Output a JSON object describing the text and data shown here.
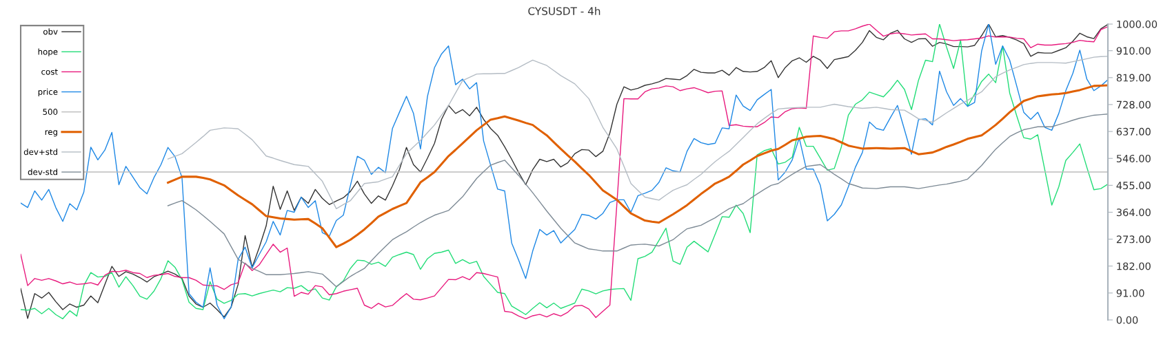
{
  "chart_data": {
    "type": "line",
    "title": "CYSUSDT - 4h",
    "categories": [
      null,
      null,
      null,
      null,
      null,
      null,
      null,
      null,
      null,
      null,
      null,
      null,
      null,
      null,
      null,
      null,
      null,
      null,
      null,
      null,
      null,
      null,
      null,
      null,
      null,
      null,
      null,
      null,
      null,
      null,
      null,
      null,
      null,
      null,
      null,
      null,
      null,
      null,
      null,
      null,
      null,
      null,
      null,
      null,
      null,
      null,
      null,
      null,
      null,
      null,
      null,
      null,
      null,
      null,
      null,
      null,
      null,
      null,
      null,
      null,
      null,
      null,
      null,
      null,
      null,
      null,
      null,
      null,
      null,
      null,
      null,
      null,
      null,
      null,
      null,
      null,
      null,
      null,
      null,
      null,
      null,
      null,
      null,
      null,
      null,
      null,
      null,
      null,
      null,
      null,
      null,
      null,
      null,
      null,
      null,
      null,
      null,
      null,
      null,
      null,
      null,
      null,
      null,
      null,
      null,
      null,
      null,
      null,
      null,
      null,
      null,
      null,
      null,
      null,
      null,
      null,
      null,
      null,
      null,
      null,
      null,
      null,
      null,
      null,
      null,
      null,
      null,
      null,
      null,
      null,
      null,
      null,
      null,
      null,
      null,
      null,
      null,
      null,
      null,
      null,
      null,
      null,
      null,
      null,
      null,
      null,
      null,
      null,
      null,
      null,
      null,
      null,
      null,
      null,
      null,
      null
    ],
    "ylim": [
      0,
      1000
    ],
    "yticks": [
      {
        "value": 0,
        "label": "0.00"
      },
      {
        "value": 91,
        "label": "91.00"
      },
      {
        "value": 182,
        "label": "182.00"
      },
      {
        "value": 273,
        "label": "273.00"
      },
      {
        "value": 364,
        "label": "364.00"
      },
      {
        "value": 455,
        "label": "455.00"
      },
      {
        "value": 546,
        "label": "546.00"
      },
      {
        "value": 637,
        "label": "637.00"
      },
      {
        "value": 728,
        "label": "728.00"
      },
      {
        "value": 819,
        "label": "819.00"
      },
      {
        "value": 910,
        "label": "910.00"
      },
      {
        "value": 1000,
        "label": "1000.00"
      }
    ],
    "tick_labels": "y",
    "legend": "top left",
    "series": [
      {
        "name": "obv",
        "color": "#333333",
        "values": [
          106,
          5,
          89,
          74,
          93,
          62,
          35,
          54,
          43,
          50,
          81,
          58,
          120,
          181,
          147,
          163,
          155,
          143,
          128,
          146,
          155,
          165,
          155,
          140,
          81,
          54,
          43,
          57,
          35,
          10,
          43,
          120,
          285,
          178,
          244,
          318,
          452,
          374,
          436,
          370,
          415,
          394,
          441,
          411,
          390,
          402,
          413,
          434,
          469,
          426,
          394,
          419,
          405,
          453,
          508,
          583,
          525,
          500,
          547,
          597,
          678,
          725,
          698,
          711,
          690,
          719,
          678,
          647,
          624,
          585,
          543,
          498,
          457,
          508,
          543,
          535,
          543,
          517,
          531,
          562,
          576,
          574,
          552,
          570,
          632,
          729,
          788,
          777,
          783,
          793,
          798,
          805,
          816,
          814,
          812,
          826,
          847,
          837,
          835,
          835,
          844,
          827,
          853,
          840,
          838,
          840,
          853,
          876,
          819,
          853,
          876,
          886,
          871,
          891,
          878,
          850,
          880,
          885,
          890,
          911,
          938,
          978,
          955,
          947,
          969,
          979,
          950,
          938,
          950,
          951,
          925,
          938,
          933,
          924,
          924,
          923,
          928,
          961,
          1000,
          957,
          961,
          955,
          946,
          934,
          891,
          904,
          902,
          902,
          911,
          920,
          942,
          969,
          957,
          951,
          984,
          999
        ]
      },
      {
        "name": "hope",
        "color": "#22dd77",
        "values": [
          35,
          33,
          39,
          21,
          39,
          18,
          4,
          31,
          13,
          116,
          160,
          145,
          147,
          160,
          111,
          146,
          116,
          80,
          70,
          97,
          140,
          200,
          178,
          136,
          60,
          39,
          35,
          129,
          70,
          56,
          66,
          87,
          89,
          81,
          89,
          95,
          101,
          95,
          109,
          107,
          116,
          98,
          105,
          74,
          67,
          112,
          132,
          174,
          202,
          200,
          188,
          195,
          181,
          212,
          221,
          229,
          221,
          171,
          207,
          225,
          229,
          236,
          191,
          204,
          191,
          198,
          147,
          120,
          93,
          89,
          47,
          33,
          18,
          39,
          58,
          41,
          57,
          39,
          48,
          57,
          104,
          98,
          88,
          98,
          103,
          105,
          106,
          66,
          207,
          215,
          229,
          269,
          310,
          199,
          188,
          246,
          266,
          248,
          230,
          289,
          349,
          347,
          388,
          360,
          295,
          558,
          572,
          579,
          527,
          533,
          550,
          651,
          587,
          587,
          547,
          506,
          512,
          585,
          692,
          729,
          744,
          770,
          762,
          754,
          779,
          810,
          779,
          711,
          810,
          878,
          873,
          1000,
          922,
          850,
          946,
          722,
          763,
          806,
          831,
          802,
          926,
          767,
          690,
          616,
          611,
          626,
          508,
          388,
          450,
          539,
          566,
          595,
          516,
          440,
          444,
          459
        ]
      },
      {
        "name": "cost",
        "color": "#e8197d",
        "values": [
          222,
          116,
          140,
          134,
          140,
          132,
          122,
          128,
          120,
          122,
          126,
          118,
          151,
          164,
          163,
          168,
          160,
          157,
          143,
          151,
          153,
          157,
          147,
          143,
          143,
          134,
          118,
          116,
          115,
          103,
          119,
          126,
          192,
          167,
          186,
          221,
          256,
          229,
          243,
          80,
          93,
          87,
          116,
          112,
          85,
          89,
          97,
          102,
          107,
          50,
          39,
          56,
          44,
          49,
          70,
          89,
          70,
          68,
          74,
          81,
          109,
          137,
          136,
          146,
          136,
          160,
          157,
          151,
          145,
          29,
          26,
          13,
          4,
          14,
          19,
          10,
          21,
          13,
          26,
          47,
          49,
          37,
          8,
          29,
          50,
          393,
          748,
          747,
          747,
          771,
          781,
          784,
          791,
          788,
          775,
          781,
          785,
          777,
          768,
          773,
          774,
          657,
          660,
          655,
          653,
          653,
          667,
          686,
          684,
          704,
          714,
          717,
          715,
          960,
          955,
          952,
          974,
          977,
          977,
          984,
          993,
          1000,
          979,
          959,
          967,
          970,
          967,
          963,
          965,
          967,
          950,
          950,
          947,
          944,
          946,
          947,
          950,
          953,
          960,
          956,
          957,
          956,
          952,
          950,
          920,
          932,
          929,
          929,
          932,
          934,
          938,
          945,
          942,
          940,
          981,
          991
        ]
      },
      {
        "name": "price",
        "color": "#1e88e5",
        "values": [
          395,
          380,
          436,
          405,
          441,
          380,
          333,
          393,
          372,
          432,
          584,
          541,
          574,
          634,
          457,
          519,
          483,
          447,
          426,
          481,
          525,
          583,
          552,
          481,
          89,
          60,
          43,
          176,
          50,
          4,
          43,
          205,
          246,
          176,
          221,
          264,
          333,
          287,
          370,
          364,
          415,
          380,
          403,
          295,
          283,
          336,
          354,
          453,
          553,
          540,
          492,
          516,
          498,
          647,
          702,
          756,
          698,
          578,
          756,
          853,
          899,
          926,
          795,
          814,
          781,
          802,
          605,
          523,
          442,
          436,
          260,
          202,
          140,
          233,
          306,
          287,
          302,
          260,
          283,
          306,
          357,
          353,
          341,
          360,
          397,
          406,
          406,
          364,
          420,
          428,
          438,
          465,
          514,
          504,
          500,
          570,
          613,
          599,
          593,
          597,
          649,
          646,
          760,
          723,
          708,
          744,
          762,
          779,
          473,
          500,
          541,
          615,
          510,
          510,
          455,
          335,
          357,
          389,
          450,
          516,
          566,
          669,
          647,
          641,
          684,
          725,
          643,
          560,
          677,
          680,
          659,
          841,
          771,
          725,
          748,
          722,
          735,
          909,
          1000,
          864,
          926,
          878,
          791,
          702,
          678,
          702,
          651,
          641,
          698,
          775,
          833,
          912,
          814,
          775,
          791,
          812
        ]
      },
      {
        "name": "500",
        "color": "#bbbbbb",
        "values": [
          null,
          null,
          null,
          null,
          null,
          null,
          null,
          null,
          null,
          500,
          500,
          500,
          500,
          500,
          500,
          500,
          500,
          500,
          500,
          500,
          500,
          500,
          500,
          500,
          500,
          500,
          500,
          500,
          500,
          500,
          500,
          500,
          500,
          500,
          500,
          500,
          500,
          500,
          500,
          500,
          500,
          500,
          500,
          500,
          500,
          500,
          500,
          500,
          500,
          500,
          500,
          500,
          500,
          500,
          500,
          500,
          500,
          500,
          500,
          500,
          500,
          500,
          500,
          500,
          500,
          500,
          500,
          500,
          500,
          500,
          500,
          500,
          500,
          500,
          500,
          500,
          500,
          500,
          500,
          500,
          500,
          500,
          500,
          500,
          500,
          500,
          500,
          500,
          500,
          500,
          500,
          500,
          500,
          500,
          500,
          500,
          500,
          500,
          500,
          500,
          500,
          500,
          500,
          500,
          500,
          500,
          500,
          500,
          500,
          500,
          500,
          500,
          500,
          500,
          500,
          500,
          500,
          500,
          500,
          500,
          500,
          500,
          500,
          500,
          500,
          500,
          500,
          500,
          500,
          500,
          500,
          500,
          500,
          500,
          500,
          500,
          500,
          500,
          500,
          500,
          500,
          500,
          500,
          500,
          500,
          500,
          500,
          500,
          500,
          500,
          500,
          500,
          500,
          500,
          500,
          500
        ]
      },
      {
        "name": "reg",
        "color": "#e06000",
        "values": [
          null,
          null,
          null,
          null,
          null,
          null,
          null,
          null,
          null,
          null,
          null,
          null,
          null,
          null,
          null,
          null,
          null,
          null,
          null,
          null,
          null,
          464,
          474,
          484,
          484,
          484,
          480,
          475,
          465,
          455,
          438,
          421,
          406,
          391,
          371,
          351,
          347,
          343,
          341,
          339,
          340,
          341,
          326,
          310,
          278,
          246,
          258,
          271,
          288,
          306,
          327,
          349,
          362,
          375,
          385,
          395,
          430,
          465,
          482,
          500,
          527,
          554,
          575,
          597,
          619,
          641,
          659,
          677,
          682,
          688,
          681,
          674,
          666,
          659,
          641,
          624,
          601,
          578,
          556,
          535,
          512,
          490,
          464,
          438,
          422,
          406,
          383,
          360,
          348,
          336,
          332,
          329,
          343,
          357,
          372,
          388,
          407,
          426,
          443,
          461,
          472,
          484,
          504,
          525,
          539,
          554,
          563,
          572,
          578,
          592,
          607,
          613,
          619,
          621,
          622,
          617,
          611,
          600,
          589,
          584,
          579,
          580,
          581,
          580,
          579,
          580,
          581,
          570,
          560,
          563,
          566,
          575,
          585,
          593,
          602,
          612,
          618,
          624,
          641,
          659,
          680,
          702,
          721,
          740,
          748,
          756,
          759,
          762,
          764,
          767,
          772,
          777,
          784,
          791,
          792,
          793
        ]
      },
      {
        "name": "dev+std",
        "color": "#b4bcc4",
        "values": [
          null,
          null,
          null,
          null,
          null,
          null,
          null,
          null,
          null,
          null,
          null,
          null,
          null,
          null,
          null,
          null,
          null,
          null,
          null,
          null,
          null,
          544,
          553,
          562,
          581,
          600,
          620,
          641,
          645,
          649,
          648,
          646,
          628,
          609,
          582,
          554,
          547,
          539,
          532,
          525,
          522,
          519,
          494,
          469,
          423,
          376,
          390,
          403,
          432,
          461,
          464,
          467,
          476,
          484,
          523,
          562,
          585,
          607,
          633,
          659,
          692,
          725,
          767,
          809,
          820,
          831,
          832,
          832,
          833,
          833,
          843,
          853,
          866,
          878,
          869,
          860,
          843,
          826,
          812,
          798,
          773,
          748,
          700,
          651,
          615,
          578,
          520,
          461,
          438,
          415,
          410,
          405,
          422,
          438,
          448,
          457,
          475,
          492,
          514,
          535,
          553,
          570,
          593,
          616,
          640,
          663,
          681,
          698,
          713,
          715,
          717,
          718,
          719,
          719,
          719,
          724,
          729,
          725,
          721,
          718,
          715,
          717,
          719,
          715,
          711,
          710,
          709,
          695,
          680,
          674,
          668,
          684,
          700,
          715,
          730,
          742,
          757,
          771,
          797,
          822,
          834,
          845,
          854,
          863,
          867,
          870,
          870,
          870,
          869,
          868,
          873,
          878,
          883,
          888,
          890,
          891
        ]
      },
      {
        "name": "dev-std",
        "color": "#7d8a95",
        "values": [
          null,
          null,
          null,
          null,
          null,
          null,
          null,
          null,
          null,
          null,
          null,
          null,
          null,
          null,
          null,
          null,
          null,
          null,
          null,
          null,
          null,
          386,
          395,
          403,
          388,
          372,
          353,
          333,
          312,
          291,
          248,
          205,
          190,
          174,
          164,
          153,
          153,
          153,
          155,
          157,
          160,
          163,
          159,
          155,
          134,
          112,
          130,
          147,
          161,
          174,
          200,
          225,
          248,
          271,
          285,
          298,
          314,
          329,
          342,
          354,
          362,
          370,
          393,
          416,
          447,
          478,
          501,
          523,
          532,
          540,
          514,
          488,
          459,
          430,
          399,
          368,
          339,
          310,
          285,
          260,
          250,
          240,
          237,
          233,
          233,
          233,
          243,
          253,
          255,
          256,
          253,
          250,
          261,
          271,
          290,
          308,
          314,
          320,
          333,
          345,
          361,
          376,
          385,
          393,
          410,
          426,
          441,
          455,
          461,
          477,
          492,
          506,
          519,
          522,
          525,
          509,
          492,
          477,
          461,
          454,
          446,
          445,
          444,
          447,
          450,
          450,
          450,
          447,
          444,
          448,
          452,
          456,
          459,
          464,
          469,
          476,
          499,
          522,
          550,
          577,
          599,
          620,
          632,
          643,
          648,
          653,
          653,
          653,
          660,
          667,
          675,
          682,
          687,
          692,
          694,
          696
        ]
      }
    ]
  }
}
